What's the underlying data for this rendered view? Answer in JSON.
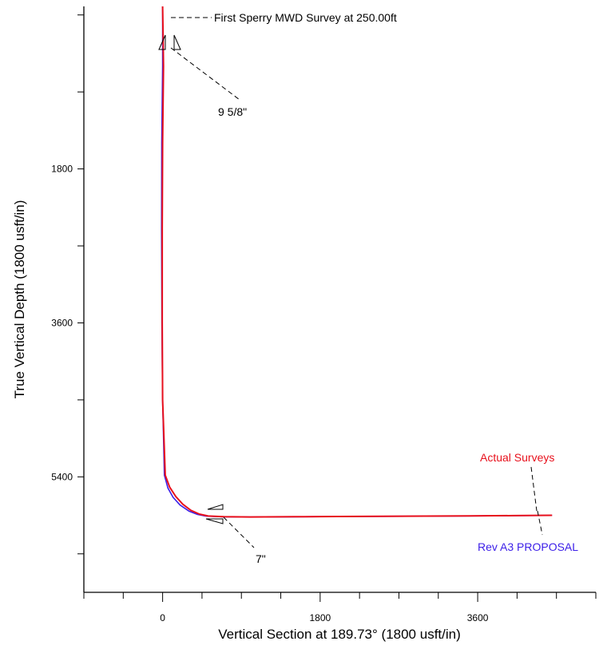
{
  "chart_data": {
    "type": "line",
    "xlabel": "Vertical Section at 189.73° (1800 usft/in)",
    "ylabel": "True Vertical Depth (1800 usft/in)",
    "xlim": [
      -900,
      4950
    ],
    "ylim": [
      -100,
      6750
    ],
    "y_inverted": true,
    "x_ticks": [
      0,
      1800,
      3600
    ],
    "y_ticks": [
      1800,
      3600,
      5400
    ],
    "grid": false,
    "series": [
      {
        "name": "Rev A3 PROPOSAL",
        "color": "#3b1ee8",
        "x": [
          0,
          0,
          0,
          -5,
          -10,
          -12,
          -8,
          0,
          20,
          60,
          120,
          200,
          300,
          400,
          500,
          700,
          1000,
          1500,
          2000,
          2500,
          3000,
          3500,
          4000,
          4450
        ],
        "y": [
          -100,
          250,
          600,
          1000,
          1500,
          2500,
          3600,
          4500,
          5380,
          5530,
          5640,
          5730,
          5800,
          5840,
          5860,
          5867,
          5870,
          5867,
          5864,
          5862,
          5860,
          5857,
          5854,
          5850
        ]
      },
      {
        "name": "Actual Surveys",
        "color": "#e8101c",
        "x": [
          0,
          5,
          10,
          5,
          0,
          -5,
          -5,
          0,
          30,
          80,
          150,
          230,
          320,
          420,
          520,
          700,
          1000,
          1500,
          2000,
          2500,
          3000,
          3500,
          4000,
          4450
        ],
        "y": [
          -100,
          250,
          600,
          1000,
          1500,
          2500,
          3600,
          4500,
          5380,
          5520,
          5630,
          5720,
          5790,
          5835,
          5858,
          5866,
          5869,
          5866,
          5863,
          5861,
          5859,
          5856,
          5853,
          5849
        ]
      }
    ],
    "annotations": [
      {
        "text": "First Sperry MWD Survey at 250.00ft",
        "x": 0,
        "y": 30
      },
      {
        "text": "9 5/8\"",
        "x": 0,
        "y": 330
      },
      {
        "text": "7\"",
        "x": 550,
        "y": 5870
      }
    ],
    "legend": "inline labels at right end of curves"
  }
}
